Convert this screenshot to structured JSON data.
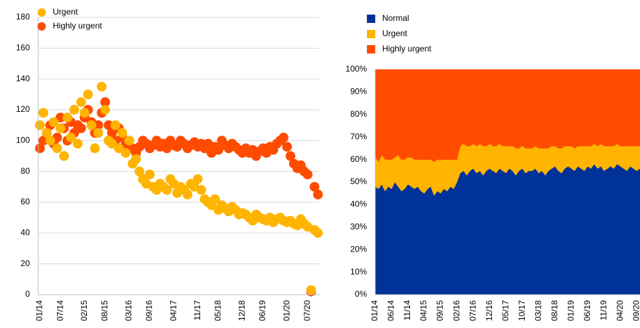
{
  "chart_data": [
    {
      "type": "scatter",
      "legend": "top-left",
      "grid": true,
      "categories": [
        "01/14",
        null,
        null,
        null,
        null,
        null,
        "07/14",
        null,
        null,
        null,
        null,
        null,
        null,
        "02/15",
        null,
        null,
        null,
        null,
        null,
        "08/15",
        null,
        null,
        null,
        null,
        null,
        null,
        "03/16",
        null,
        null,
        null,
        null,
        null,
        "09/16",
        null,
        null,
        null,
        null,
        null,
        null,
        "04/17",
        null,
        null,
        null,
        null,
        null,
        null,
        "11/17",
        null,
        null,
        null,
        null,
        null,
        "05/18",
        null,
        null,
        null,
        null,
        null,
        null,
        "12/18",
        null,
        null,
        null,
        null,
        null,
        "06/19",
        null,
        null,
        null,
        null,
        null,
        null,
        "01/20",
        null,
        null,
        null,
        null,
        null,
        "07/20",
        null,
        null,
        null
      ],
      "ylim": [
        0,
        180
      ],
      "yticks": [
        0,
        20,
        40,
        60,
        80,
        100,
        120,
        140,
        160,
        180
      ],
      "series": [
        {
          "name": "Highly urgent",
          "color": "#ff4b00",
          "values": [
            95,
            100,
            105,
            110,
            98,
            102,
            115,
            108,
            100,
            112,
            105,
            110,
            108,
            115,
            120,
            112,
            105,
            110,
            118,
            125,
            110,
            105,
            100,
            108,
            102,
            98,
            100,
            95,
            92,
            96,
            100,
            98,
            95,
            97,
            100,
            96,
            98,
            95,
            100,
            97,
            96,
            100,
            98,
            95,
            97,
            99,
            96,
            98,
            95,
            98,
            92,
            96,
            94,
            100,
            97,
            95,
            98,
            96,
            94,
            92,
            95,
            92,
            94,
            90,
            93,
            95,
            92,
            96,
            94,
            98,
            100,
            102,
            96,
            90,
            85,
            82,
            84,
            80,
            78,
            2,
            70,
            65
          ]
        },
        {
          "name": "Urgent",
          "color": "#ffb400",
          "values": [
            110,
            118,
            105,
            100,
            112,
            95,
            108,
            90,
            115,
            102,
            120,
            98,
            125,
            118,
            130,
            110,
            95,
            105,
            135,
            120,
            100,
            98,
            110,
            95,
            105,
            92,
            100,
            85,
            88,
            80,
            75,
            72,
            78,
            70,
            68,
            72,
            70,
            68,
            75,
            72,
            66,
            70,
            68,
            65,
            72,
            70,
            75,
            68,
            62,
            60,
            58,
            62,
            55,
            58,
            56,
            54,
            57,
            55,
            52,
            53,
            52,
            50,
            48,
            52,
            50,
            49,
            48,
            50,
            47,
            49,
            50,
            48,
            47,
            48,
            46,
            45,
            49,
            46,
            44,
            3,
            42,
            40
          ]
        }
      ]
    },
    {
      "type": "stacked-area",
      "legend": "top-left",
      "grid": false,
      "categories": [
        "01/14",
        null,
        null,
        null,
        null,
        "06/14",
        null,
        null,
        null,
        null,
        "11/14",
        null,
        null,
        null,
        null,
        "04/15",
        null,
        null,
        null,
        null,
        "09/15",
        null,
        null,
        null,
        null,
        "02/16",
        null,
        null,
        null,
        null,
        "07/16",
        null,
        null,
        null,
        null,
        "12/16",
        null,
        null,
        null,
        null,
        "05/17",
        null,
        null,
        null,
        null,
        "10/17",
        null,
        null,
        null,
        null,
        "03/18",
        null,
        null,
        null,
        null,
        "08/18",
        null,
        null,
        null,
        null,
        "01/19",
        null,
        null,
        null,
        null,
        "06/19",
        null,
        null,
        null,
        null,
        "11/19",
        null,
        null,
        null,
        null,
        "04/20",
        null,
        null,
        null,
        null,
        "09/20",
        null
      ],
      "ylim": [
        0,
        100
      ],
      "yticks": [
        {
          "value": 0,
          "label": "0%"
        },
        {
          "value": 10,
          "label": "10%"
        },
        {
          "value": 20,
          "label": "20%"
        },
        {
          "value": 30,
          "label": "30%"
        },
        {
          "value": 40,
          "label": "40%"
        },
        {
          "value": 50,
          "label": "50%"
        },
        {
          "value": 60,
          "label": "60%"
        },
        {
          "value": 70,
          "label": "70%"
        },
        {
          "value": 80,
          "label": "80%"
        },
        {
          "value": 90,
          "label": "90%"
        },
        {
          "value": 100,
          "label": "100%"
        }
      ],
      "series": [
        {
          "name": "Normal",
          "color": "#003299",
          "values": [
            48,
            47,
            49,
            46,
            48,
            47,
            50,
            48,
            46,
            47,
            49,
            48,
            47,
            48,
            46,
            45,
            47,
            48,
            44,
            46,
            45,
            47,
            46,
            48,
            47,
            50,
            54,
            55,
            53,
            55,
            56,
            54,
            55,
            53,
            55,
            56,
            55,
            54,
            56,
            55,
            54,
            56,
            55,
            53,
            55,
            56,
            54,
            55,
            55,
            56,
            54,
            55,
            53,
            55,
            56,
            57,
            55,
            54,
            56,
            57,
            56,
            55,
            57,
            56,
            55,
            57,
            56,
            58,
            56,
            57,
            55,
            56,
            57,
            56,
            58,
            57,
            56,
            55,
            57,
            56,
            55,
            56
          ]
        },
        {
          "name": "Urgent",
          "color": "#ffb400",
          "values": [
            13,
            12,
            13,
            14,
            12,
            13,
            11,
            14,
            14,
            13,
            12,
            13,
            13,
            12,
            14,
            15,
            13,
            12,
            15,
            14,
            15,
            13,
            14,
            12,
            13,
            10,
            12,
            12,
            13,
            11,
            11,
            12,
            12,
            13,
            11,
            11,
            11,
            12,
            11,
            11,
            12,
            10,
            11,
            12,
            10,
            10,
            11,
            10,
            10,
            10,
            11,
            10,
            12,
            10,
            10,
            9,
            10,
            11,
            10,
            9,
            10,
            10,
            9,
            10,
            11,
            9,
            10,
            9,
            10,
            10,
            11,
            10,
            9,
            10,
            9,
            9,
            10,
            11,
            9,
            10,
            11,
            10
          ]
        },
        {
          "name": "Highly urgent",
          "color": "#ff4b00",
          "values": [
            39,
            41,
            38,
            40,
            40,
            40,
            39,
            38,
            40,
            40,
            39,
            39,
            40,
            40,
            40,
            40,
            40,
            40,
            41,
            40,
            40,
            40,
            40,
            40,
            40,
            40,
            34,
            33,
            34,
            34,
            33,
            34,
            33,
            34,
            34,
            33,
            34,
            34,
            33,
            34,
            34,
            34,
            34,
            35,
            35,
            34,
            35,
            35,
            35,
            34,
            35,
            35,
            35,
            35,
            34,
            34,
            35,
            35,
            34,
            34,
            34,
            35,
            34,
            34,
            34,
            34,
            34,
            33,
            34,
            33,
            34,
            34,
            34,
            34,
            33,
            34,
            34,
            34,
            34,
            34,
            34,
            34
          ]
        }
      ]
    }
  ]
}
